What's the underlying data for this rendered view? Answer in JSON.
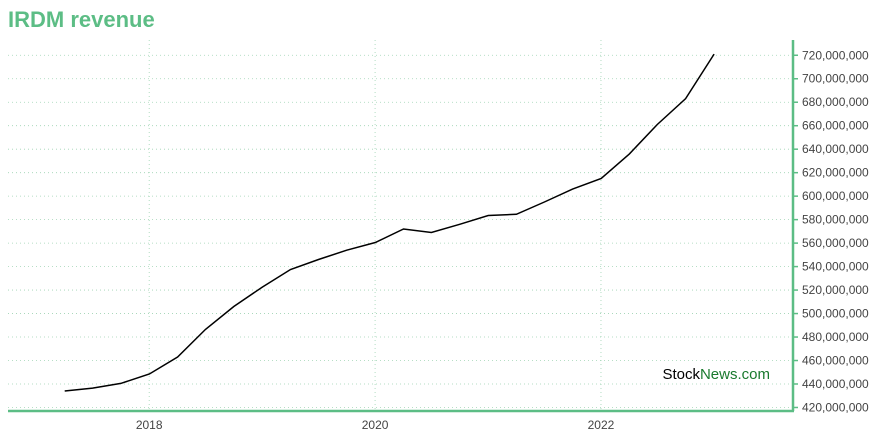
{
  "title": "IRDM revenue",
  "watermark": {
    "part1": "Stock",
    "part2": "News",
    "part3": ".com",
    "color1": "#000000",
    "color2": "#1a7a2e"
  },
  "colors": {
    "accent": "#5cbd85",
    "grid": "#9fd3b3",
    "line": "#000000"
  },
  "chart_data": {
    "type": "line",
    "title": "IRDM revenue",
    "xlabel": "",
    "ylabel": "",
    "x_ticks": [
      "2018",
      "2020",
      "2022"
    ],
    "y_ticks": [
      420000000,
      440000000,
      460000000,
      480000000,
      500000000,
      520000000,
      540000000,
      560000000,
      580000000,
      600000000,
      620000000,
      640000000,
      660000000,
      680000000,
      700000000,
      720000000
    ],
    "y_tick_labels": [
      "420,000,000",
      "440,000,000",
      "460,000,000",
      "480,000,000",
      "500,000,000",
      "520,000,000",
      "540,000,000",
      "560,000,000",
      "580,000,000",
      "600,000,000",
      "620,000,000",
      "640,000,000",
      "660,000,000",
      "680,000,000",
      "700,000,000",
      "720,000,000"
    ],
    "xlim": [
      2016.75,
      2023.7
    ],
    "ylim": [
      417000000,
      733000000
    ],
    "grid": true,
    "series": [
      {
        "x": [
          "2017-03-31",
          "2017-06-30",
          "2017-09-30",
          "2017-12-31",
          "2018-03-31",
          "2018-06-30",
          "2018-09-30",
          "2018-12-31",
          "2019-03-31",
          "2019-06-30",
          "2019-09-30",
          "2019-12-31",
          "2020-03-31",
          "2020-06-30",
          "2020-09-30",
          "2020-12-31",
          "2021-03-31",
          "2021-06-30",
          "2021-09-30",
          "2021-12-31",
          "2022-03-31",
          "2022-06-30",
          "2022-09-30",
          "2022-12-31"
        ],
        "y": [
          434000000,
          436500000,
          440500000,
          448500000,
          463000000,
          486500000,
          506000000,
          522500000,
          537500000,
          546000000,
          554000000,
          560500000,
          572000000,
          569000000,
          576000000,
          583500000,
          584500000,
          595000000,
          606000000,
          615000000,
          636000000,
          661000000,
          683000000,
          721000000
        ]
      }
    ]
  }
}
